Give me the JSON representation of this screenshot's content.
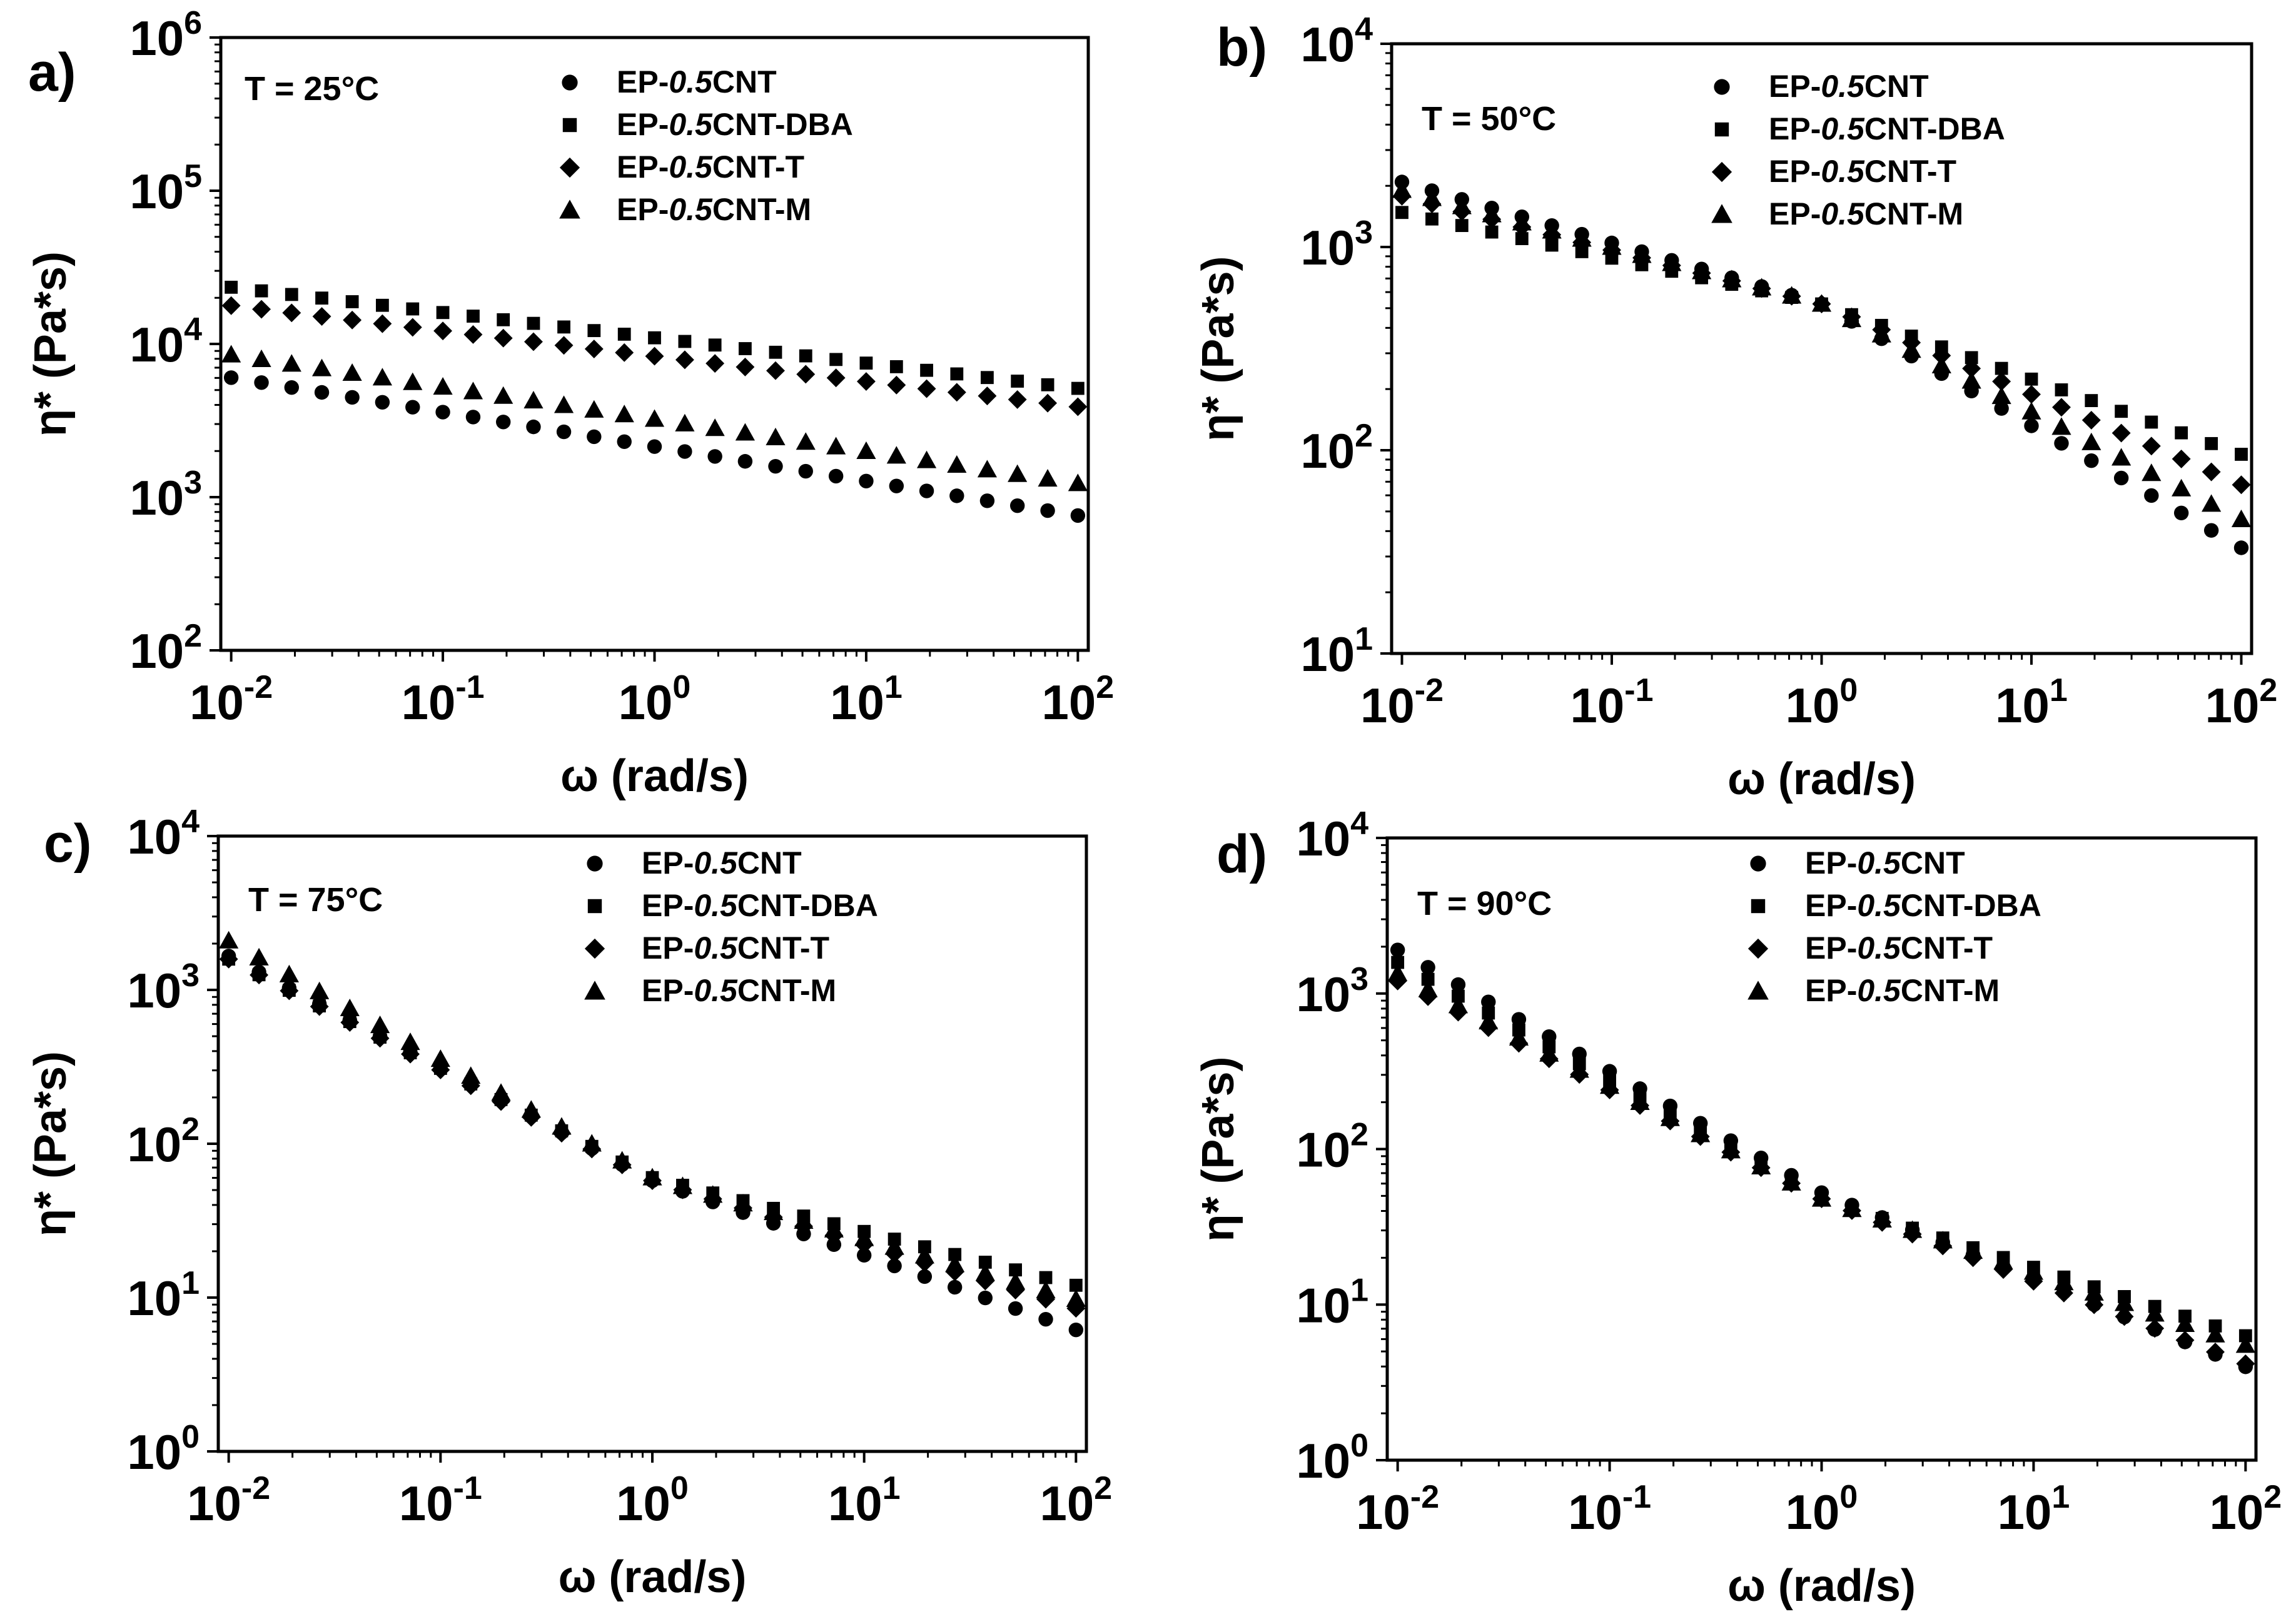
{
  "figure": {
    "series_names": [
      "EP-0.5CNT",
      "EP-0.5CNT-DBA",
      "EP-0.5CNT-T",
      "EP-0.5CNT-M"
    ],
    "legend": [
      {
        "prefix": "EP-",
        "italic": "0.5",
        "suffix": "CNT",
        "marker": "circle"
      },
      {
        "prefix": "EP-",
        "italic": "0.5",
        "suffix": "CNT-DBA",
        "marker": "square"
      },
      {
        "prefix": "EP-",
        "italic": "0.5",
        "suffix": "CNT-T",
        "marker": "diamond"
      },
      {
        "prefix": "EP-",
        "italic": "0.5",
        "suffix": "CNT-M",
        "marker": "triangle"
      }
    ],
    "marker_color": "#000000"
  },
  "chart_data": [
    {
      "type": "scatter",
      "panel": "a)",
      "title": "T = 25°C",
      "xlabel": "ω (rad/s)",
      "ylabel": "η* (Pa*s)",
      "xscale": "log",
      "yscale": "log",
      "xlim": [
        0.01,
        100
      ],
      "ylim": [
        100,
        1000000
      ],
      "xtick_exponents": [
        -2,
        -1,
        0,
        1,
        2
      ],
      "ytick_exponents": [
        2,
        3,
        4,
        5,
        6
      ],
      "legend_position": "top-right",
      "x": [
        0.01,
        0.0139,
        0.0193,
        0.0268,
        0.0373,
        0.0518,
        0.072,
        0.1,
        0.139,
        0.193,
        0.268,
        0.373,
        0.518,
        0.72,
        1.0,
        1.39,
        1.93,
        2.68,
        3.73,
        5.18,
        7.2,
        10.0,
        13.9,
        19.3,
        26.8,
        37.3,
        51.8,
        72.0,
        100.0
      ],
      "series": [
        {
          "name": "EP-0.5CNT",
          "marker": "circle",
          "y_log_start": 3.78,
          "y_log_end": 2.88
        },
        {
          "name": "EP-0.5CNT-DBA",
          "marker": "square",
          "y_log_start": 4.37,
          "y_log_end": 3.71
        },
        {
          "name": "EP-0.5CNT-T",
          "marker": "diamond",
          "y_log_start": 4.25,
          "y_log_end": 3.59
        },
        {
          "name": "EP-0.5CNT-M",
          "marker": "triangle",
          "y_log_start": 3.93,
          "y_log_end": 3.09
        }
      ]
    },
    {
      "type": "scatter",
      "panel": "b)",
      "title": "T = 50°C",
      "xlabel": "ω (rad/s)",
      "ylabel": "η* (Pa*s)",
      "xscale": "log",
      "yscale": "log",
      "xlim": [
        0.01,
        100
      ],
      "ylim": [
        10,
        10000
      ],
      "xtick_exponents": [
        -2,
        -1,
        0,
        1,
        2
      ],
      "ytick_exponents": [
        1,
        2,
        3,
        4
      ],
      "legend_position": "top-right",
      "x": [
        0.01,
        0.0139,
        0.0193,
        0.0268,
        0.0373,
        0.0518,
        0.072,
        0.1,
        0.139,
        0.193,
        0.268,
        0.373,
        0.518,
        0.72,
        1.0,
        1.39,
        1.93,
        2.68,
        3.73,
        5.18,
        7.2,
        10.0,
        13.9,
        19.3,
        26.8,
        37.3,
        51.8,
        72.0,
        100.0
      ],
      "series": [
        {
          "name": "EP-0.5CNT",
          "marker": "circle",
          "y_log_start": 3.32,
          "y_log_mid": 2.72,
          "y_log_end": 1.52
        },
        {
          "name": "EP-0.5CNT-DBA",
          "marker": "square",
          "y_log_start": 3.17,
          "y_log_mid": 2.72,
          "y_log_end": 1.98
        },
        {
          "name": "EP-0.5CNT-T",
          "marker": "diamond",
          "y_log_start": 3.25,
          "y_log_mid": 2.72,
          "y_log_end": 1.83
        },
        {
          "name": "EP-0.5CNT-M",
          "marker": "triangle",
          "y_log_start": 3.28,
          "y_log_mid": 2.72,
          "y_log_end": 1.66
        }
      ]
    },
    {
      "type": "scatter",
      "panel": "c)",
      "title": "T = 75°C",
      "xlabel": "ω (rad/s)",
      "ylabel": "η* (Pa*s)",
      "xscale": "log",
      "yscale": "log",
      "xlim": [
        0.01,
        100
      ],
      "ylim": [
        1,
        10000
      ],
      "xtick_exponents": [
        -2,
        -1,
        0,
        1,
        2
      ],
      "ytick_exponents": [
        0,
        1,
        2,
        3,
        4
      ],
      "legend_position": "top-right",
      "x": [
        0.01,
        0.0139,
        0.0193,
        0.0268,
        0.0373,
        0.0518,
        0.072,
        0.1,
        0.139,
        0.193,
        0.268,
        0.373,
        0.518,
        0.72,
        1.0,
        1.39,
        1.93,
        2.68,
        3.73,
        5.18,
        7.2,
        10.0,
        13.9,
        19.3,
        26.8,
        37.3,
        51.8,
        72.0,
        100.0
      ],
      "series": [
        {
          "name": "EP-0.5CNT",
          "marker": "circle",
          "y_log_start": 3.22,
          "y_log_mid": 1.76,
          "y_log_end": 0.79
        },
        {
          "name": "EP-0.5CNT-DBA",
          "marker": "square",
          "y_log_start": 3.2,
          "y_log_mid": 1.78,
          "y_log_end": 1.08
        },
        {
          "name": "EP-0.5CNT-T",
          "marker": "diamond",
          "y_log_start": 3.2,
          "y_log_mid": 1.76,
          "y_log_end": 0.93
        },
        {
          "name": "EP-0.5CNT-M",
          "marker": "triangle",
          "y_log_start": 3.32,
          "y_log_mid": 1.78,
          "y_log_end": 0.99
        }
      ]
    },
    {
      "type": "scatter",
      "panel": "d)",
      "title": "T = 90°C",
      "xlabel": "ω (rad/s)",
      "ylabel": "η* (Pa*s)",
      "xscale": "log",
      "yscale": "log",
      "xlim": [
        0.01,
        100
      ],
      "ylim": [
        1,
        10000
      ],
      "xtick_exponents": [
        -2,
        -1,
        0,
        1,
        2
      ],
      "ytick_exponents": [
        0,
        1,
        2,
        3,
        4
      ],
      "legend_position": "top-right",
      "x": [
        0.01,
        0.0139,
        0.0193,
        0.0268,
        0.0373,
        0.0518,
        0.072,
        0.1,
        0.139,
        0.193,
        0.268,
        0.373,
        0.518,
        0.72,
        1.0,
        1.39,
        1.93,
        2.68,
        3.73,
        5.18,
        7.2,
        10.0,
        13.9,
        19.3,
        26.8,
        37.3,
        51.8,
        72.0,
        100.0
      ],
      "series": [
        {
          "name": "EP-0.5CNT",
          "marker": "circle",
          "y_log_start": 3.28,
          "y_log_mid": 1.72,
          "y_log_end": 0.6
        },
        {
          "name": "EP-0.5CNT-DBA",
          "marker": "square",
          "y_log_start": 3.2,
          "y_log_mid": 1.68,
          "y_log_end": 0.8
        },
        {
          "name": "EP-0.5CNT-T",
          "marker": "diamond",
          "y_log_start": 3.08,
          "y_log_mid": 1.68,
          "y_log_end": 0.62
        },
        {
          "name": "EP-0.5CNT-M",
          "marker": "triangle",
          "y_log_start": 3.13,
          "y_log_mid": 1.68,
          "y_log_end": 0.74
        }
      ]
    }
  ]
}
